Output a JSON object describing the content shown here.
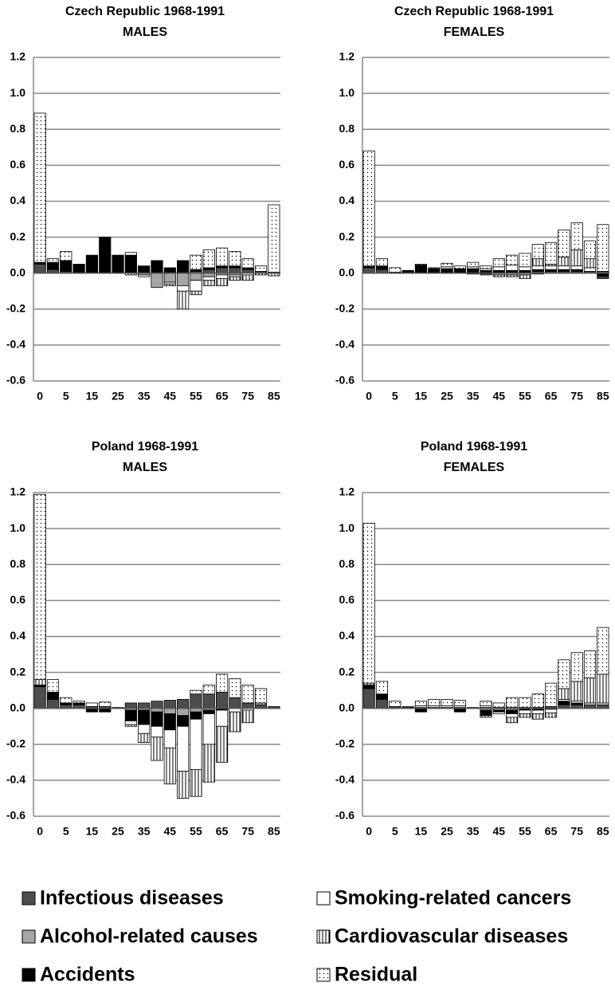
{
  "chart_data": [
    {
      "type": "bar",
      "stacked": true,
      "title": "Czech Republic 1968-1991",
      "subtitle": "MALES",
      "categories": [
        "0",
        null,
        "5",
        null,
        "15",
        null,
        "25",
        null,
        "35",
        null,
        "45",
        null,
        "55",
        null,
        "65",
        null,
        "75",
        null,
        "85"
      ],
      "ylim": [
        -0.6,
        1.2
      ],
      "yticks": [
        -0.6,
        -0.4,
        -0.2,
        {
          "value": 0,
          "label": "0.0"
        },
        0.2,
        0.4,
        0.6,
        0.8,
        {
          "value": 1,
          "label": "1.0"
        },
        1.2
      ],
      "grid": true,
      "series": [
        {
          "values": [
            0.05,
            0.02,
            0.01,
            0.005,
            0,
            0,
            0,
            0,
            0,
            0,
            0,
            0,
            0.01,
            0.02,
            0.03,
            0.03,
            0.02,
            0.01,
            0.005
          ]
        },
        {
          "values": [
            0,
            0,
            0,
            0,
            0,
            0,
            0,
            0,
            -0.01,
            -0.08,
            -0.05,
            -0.07,
            -0.04,
            -0.02,
            -0.01,
            -0.01,
            0,
            0,
            0
          ]
        },
        {
          "values": [
            0.01,
            0.04,
            0.06,
            0.045,
            0.1,
            0.2,
            0.1,
            0.1,
            0.04,
            0.07,
            0.03,
            0.07,
            0.01,
            0.01,
            0.01,
            0.01,
            0.01,
            0,
            0
          ]
        },
        {
          "values": [
            0,
            0,
            0,
            0,
            0,
            0,
            0,
            0,
            -0.01,
            0,
            -0.01,
            -0.03,
            -0.06,
            -0.02,
            -0.02,
            -0.01,
            -0.01,
            0,
            0
          ]
        },
        {
          "values": [
            0,
            0,
            0,
            0,
            0,
            0,
            0,
            -0.01,
            0,
            0,
            -0.01,
            -0.1,
            -0.02,
            -0.03,
            -0.04,
            -0.02,
            -0.03,
            -0.01,
            -0.015
          ]
        },
        {
          "values": [
            0.83,
            0.02,
            0.05,
            0,
            0,
            0,
            0,
            0.015,
            0,
            0,
            0,
            0,
            0.08,
            0.1,
            0.1,
            0.08,
            0.05,
            0.03,
            0.375
          ]
        }
      ]
    },
    {
      "type": "bar",
      "stacked": true,
      "title": "Czech Republic 1968-1991",
      "subtitle": "FEMALES",
      "categories": [
        "0",
        null,
        "5",
        null,
        "15",
        null,
        "25",
        null,
        "35",
        null,
        "45",
        null,
        "55",
        null,
        "65",
        null,
        "75",
        null,
        "85"
      ],
      "ylim": [
        -0.6,
        1.2
      ],
      "yticks": [
        -0.6,
        -0.4,
        -0.2,
        {
          "value": 0,
          "label": "0.0"
        },
        0.2,
        0.4,
        0.6,
        0.8,
        {
          "value": 1,
          "label": "1.0"
        },
        1.2
      ],
      "grid": true,
      "series": [
        {
          "values": [
            0.03,
            0.02,
            0.005,
            0.005,
            0.005,
            0.005,
            0.005,
            0.005,
            0.005,
            0.005,
            0.005,
            0.005,
            0.005,
            0.01,
            0.01,
            0.01,
            0.01,
            0.01,
            0.01
          ]
        },
        {
          "values": [
            0,
            0,
            0,
            0,
            0,
            0,
            0,
            0,
            0,
            -0.005,
            -0.01,
            -0.01,
            -0.01,
            -0.005,
            0,
            0,
            0,
            0,
            0
          ]
        },
        {
          "values": [
            0.01,
            0.02,
            0,
            0.01,
            0.04,
            0.02,
            0.02,
            0.02,
            0.02,
            0.01,
            0.01,
            0.01,
            0.01,
            0.01,
            0.01,
            0.01,
            0.01,
            0,
            -0.02
          ]
        },
        {
          "values": [
            0,
            0,
            0,
            0,
            0,
            0,
            0.01,
            0,
            0.01,
            0.01,
            0.02,
            0.03,
            0.02,
            0.02,
            0.02,
            0.02,
            0.02,
            0.02,
            -0.005
          ]
        },
        {
          "values": [
            0,
            0,
            0,
            0,
            0,
            0,
            0,
            0,
            -0.005,
            -0.005,
            -0.01,
            -0.01,
            -0.02,
            0.04,
            0.01,
            0.05,
            0.09,
            0.05,
            -0.005
          ]
        },
        {
          "values": [
            0.64,
            0.04,
            0.025,
            0,
            0.005,
            0.005,
            0.02,
            0.015,
            0.025,
            0.015,
            0.045,
            0.055,
            0.075,
            0.08,
            0.12,
            0.15,
            0.15,
            0.1,
            0.26
          ]
        }
      ]
    },
    {
      "type": "bar",
      "stacked": true,
      "title": "Poland 1968-1991",
      "subtitle": "MALES",
      "categories": [
        "0",
        null,
        "5",
        null,
        "15",
        null,
        "25",
        null,
        "35",
        null,
        "45",
        null,
        "55",
        null,
        "65",
        null,
        "75",
        null,
        "85"
      ],
      "ylim": [
        -0.6,
        1.2
      ],
      "yticks": [
        -0.6,
        -0.4,
        -0.2,
        {
          "value": 0,
          "label": "0.0"
        },
        0.2,
        0.4,
        0.6,
        0.8,
        {
          "value": 1,
          "label": "1.0"
        },
        1.2
      ],
      "grid": true,
      "series": [
        {
          "values": [
            0.12,
            0.05,
            0.02,
            0.02,
            0.01,
            0.01,
            0,
            0.03,
            0.03,
            0.04,
            0.045,
            0.05,
            0.08,
            0.08,
            0.09,
            0.06,
            0.03,
            0.02,
            0.01
          ]
        },
        {
          "values": [
            0,
            0,
            0,
            0,
            0,
            0,
            0,
            -0.01,
            -0.01,
            -0.02,
            -0.03,
            -0.04,
            -0.02,
            -0.01,
            0,
            0,
            0,
            0,
            0
          ]
        },
        {
          "values": [
            0.01,
            0.04,
            0.01,
            0.01,
            -0.02,
            -0.02,
            0,
            -0.06,
            -0.08,
            -0.08,
            -0.09,
            -0.06,
            -0.04,
            -0.02,
            -0.01,
            0,
            0,
            0,
            0
          ]
        },
        {
          "values": [
            0,
            0,
            0,
            0,
            0,
            0,
            0,
            -0.02,
            -0.05,
            -0.06,
            -0.1,
            -0.25,
            -0.28,
            -0.17,
            -0.09,
            -0.02,
            -0.01,
            0,
            0
          ]
        },
        {
          "values": [
            0.03,
            0,
            0,
            0,
            0,
            0,
            0,
            -0.01,
            -0.05,
            -0.13,
            -0.2,
            -0.15,
            -0.15,
            -0.21,
            -0.2,
            -0.11,
            -0.07,
            0.01,
            0
          ]
        },
        {
          "values": [
            1.03,
            0.07,
            0.03,
            0.01,
            0.02,
            0.025,
            0.005,
            0,
            0,
            0,
            0,
            0,
            0.02,
            0.05,
            0.1,
            0.105,
            0.1,
            0.08,
            0
          ]
        }
      ]
    },
    {
      "type": "bar",
      "stacked": true,
      "title": "Poland 1968-1991",
      "subtitle": "FEMALES",
      "categories": [
        "0",
        null,
        "5",
        null,
        "15",
        null,
        "25",
        null,
        "35",
        null,
        "45",
        null,
        "55",
        null,
        "65",
        null,
        "75",
        null,
        "85"
      ],
      "ylim": [
        -0.6,
        1.2
      ],
      "yticks": [
        -0.6,
        -0.4,
        -0.2,
        {
          "value": 0,
          "label": "0.0"
        },
        0.2,
        0.4,
        0.6,
        0.8,
        {
          "value": 1,
          "label": "1.0"
        },
        1.2
      ],
      "grid": true,
      "series": [
        {
          "values": [
            0.11,
            0.05,
            0.01,
            0.005,
            0.005,
            0.005,
            0.005,
            0.005,
            0,
            0.005,
            0.005,
            0.005,
            0.005,
            0.005,
            0.01,
            0.02,
            0.02,
            0.02,
            0.02
          ]
        },
        {
          "values": [
            0,
            0,
            0,
            0,
            0,
            0,
            0,
            0,
            0,
            -0.01,
            -0.01,
            -0.01,
            0,
            0,
            0,
            0,
            0,
            0,
            0
          ]
        },
        {
          "values": [
            0.02,
            0.03,
            0,
            0,
            -0.02,
            0,
            0,
            -0.02,
            0,
            -0.03,
            -0.01,
            -0.02,
            -0.01,
            -0.01,
            -0.005,
            0.02,
            0.01,
            0,
            0
          ]
        },
        {
          "values": [
            0,
            0,
            0,
            0,
            0.01,
            0.01,
            0.01,
            0.01,
            0,
            0.01,
            -0.01,
            -0.02,
            -0.02,
            -0.02,
            -0.02,
            0.01,
            0.01,
            0.01,
            0.01
          ]
        },
        {
          "values": [
            0.01,
            0,
            0,
            0,
            0,
            0,
            0,
            0,
            0,
            -0.01,
            0,
            -0.03,
            -0.02,
            -0.03,
            -0.025,
            0.06,
            0.11,
            0.14,
            0.16
          ]
        },
        {
          "values": [
            0.89,
            0.07,
            0.03,
            0.005,
            0.025,
            0.035,
            0.035,
            0.03,
            0.005,
            0.025,
            0.025,
            0.055,
            0.055,
            0.075,
            0.13,
            0.16,
            0.16,
            0.15,
            0.26
          ]
        }
      ]
    }
  ],
  "legend": {
    "items": [
      {
        "name": "Infectious diseases",
        "color": "#4d4d4d"
      },
      {
        "name": "Alcohol-related causes",
        "color": "#a6a6a6"
      },
      {
        "name": "Accidents",
        "color": "#000000"
      },
      {
        "name": "Smoking-related cancers",
        "color": "#ffffff"
      },
      {
        "name": "Cardiovascular diseases",
        "color": "#ffffff",
        "pattern": "vertical-lines"
      },
      {
        "name": "Residual",
        "color": "#ffffff",
        "pattern": "dots"
      }
    ]
  }
}
